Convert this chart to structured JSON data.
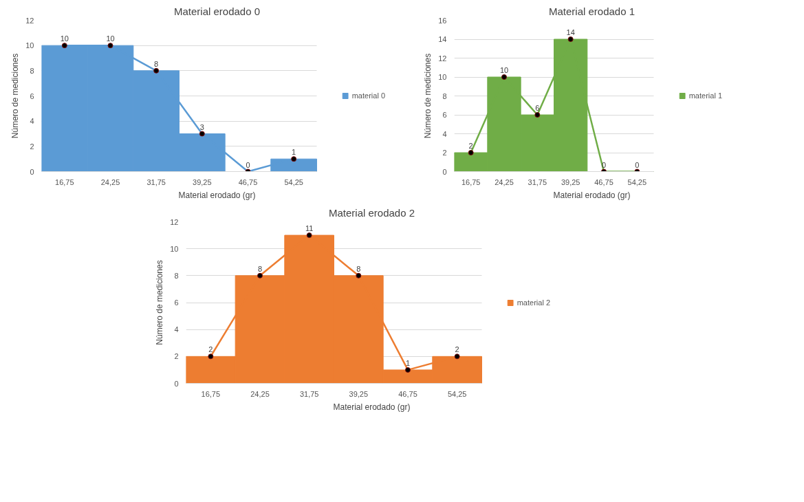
{
  "chart_data": [
    {
      "type": "bar",
      "title": "Material erodado 0",
      "xlabel": "Material erodado (gr)",
      "ylabel": "Número de mediciones",
      "categories": [
        "16,75",
        "24,25",
        "31,75",
        "39,25",
        "46,75",
        "54,25"
      ],
      "series": [
        {
          "name": "material 0",
          "color": "#5b9bd5",
          "values": [
            10,
            10,
            8,
            3,
            0,
            1
          ]
        },
        {
          "type": "line",
          "color": "#5b9bd5",
          "values": [
            10,
            10,
            8,
            3,
            0,
            1
          ],
          "marker": "circle",
          "value_labels": [
            "10",
            "10",
            "8",
            "3",
            "0",
            "1"
          ]
        }
      ],
      "ylim": [
        0,
        12
      ],
      "yticks": [
        0,
        2,
        4,
        6,
        8,
        10,
        12
      ],
      "grid": "y",
      "legend": "right"
    },
    {
      "type": "bar",
      "title": "Material erodado 1",
      "xlabel": "Material erodado (gr)",
      "ylabel": "Número de mediciones",
      "categories": [
        "16,75",
        "24,25",
        "31,75",
        "39,25",
        "46,75",
        "54,25"
      ],
      "series": [
        {
          "name": "material 1",
          "color": "#70ad47",
          "values": [
            2,
            10,
            6,
            14,
            0,
            0
          ]
        },
        {
          "type": "line",
          "color": "#70ad47",
          "values": [
            2,
            10,
            6,
            14,
            0,
            0
          ],
          "marker": "circle",
          "value_labels": [
            "2",
            "10",
            "6",
            "14",
            "0",
            "0"
          ]
        }
      ],
      "ylim": [
        0,
        16
      ],
      "yticks": [
        0,
        2,
        4,
        6,
        8,
        10,
        12,
        14,
        16
      ],
      "grid": "y",
      "legend": "right"
    },
    {
      "type": "bar",
      "title": "Material erodado 2",
      "xlabel": "Material erodado (gr)",
      "ylabel": "Número de mediciones",
      "categories": [
        "16,75",
        "24,25",
        "31,75",
        "39,25",
        "46,75",
        "54,25"
      ],
      "series": [
        {
          "name": "material 2",
          "color": "#ed7d31",
          "values": [
            2,
            8,
            11,
            8,
            1,
            2
          ]
        },
        {
          "type": "line",
          "color": "#ed7d31",
          "values": [
            2,
            8,
            11,
            8,
            1,
            2
          ],
          "marker": "circle",
          "value_labels": [
            "2",
            "8",
            "11",
            "8",
            "1",
            "2"
          ]
        }
      ],
      "ylim": [
        0,
        12
      ],
      "yticks": [
        0,
        2,
        4,
        6,
        8,
        10,
        12
      ],
      "grid": "y",
      "legend": "right"
    }
  ]
}
